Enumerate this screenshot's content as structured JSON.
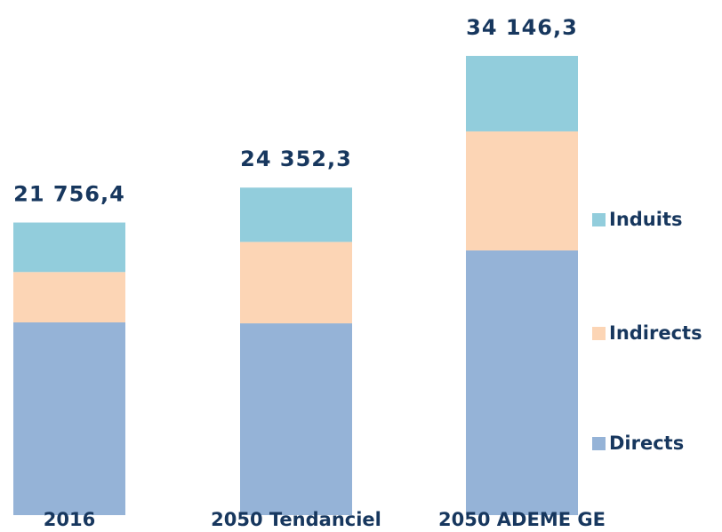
{
  "chart_data": {
    "type": "stacked_bar",
    "categories": [
      "2016",
      "2050 Tendanciel",
      "2050 ADEME GE"
    ],
    "series": [
      {
        "name": "Directs",
        "color": "#95b3d7",
        "values": [
          14330,
          14260,
          19682
        ]
      },
      {
        "name": "Indirects",
        "color": "#fcd5b5",
        "values": [
          3745,
          6055,
          8850
        ]
      },
      {
        "name": "Induits",
        "color": "#92cddc",
        "values": [
          3681.4,
          4037.3,
          5614.3
        ]
      }
    ],
    "totals": [
      21756.4,
      24352.3,
      34146.3
    ],
    "total_labels": [
      "21 756,4",
      "24 352,3",
      "34 146,3"
    ],
    "ylim": [
      0,
      35000
    ],
    "legend": "right"
  }
}
